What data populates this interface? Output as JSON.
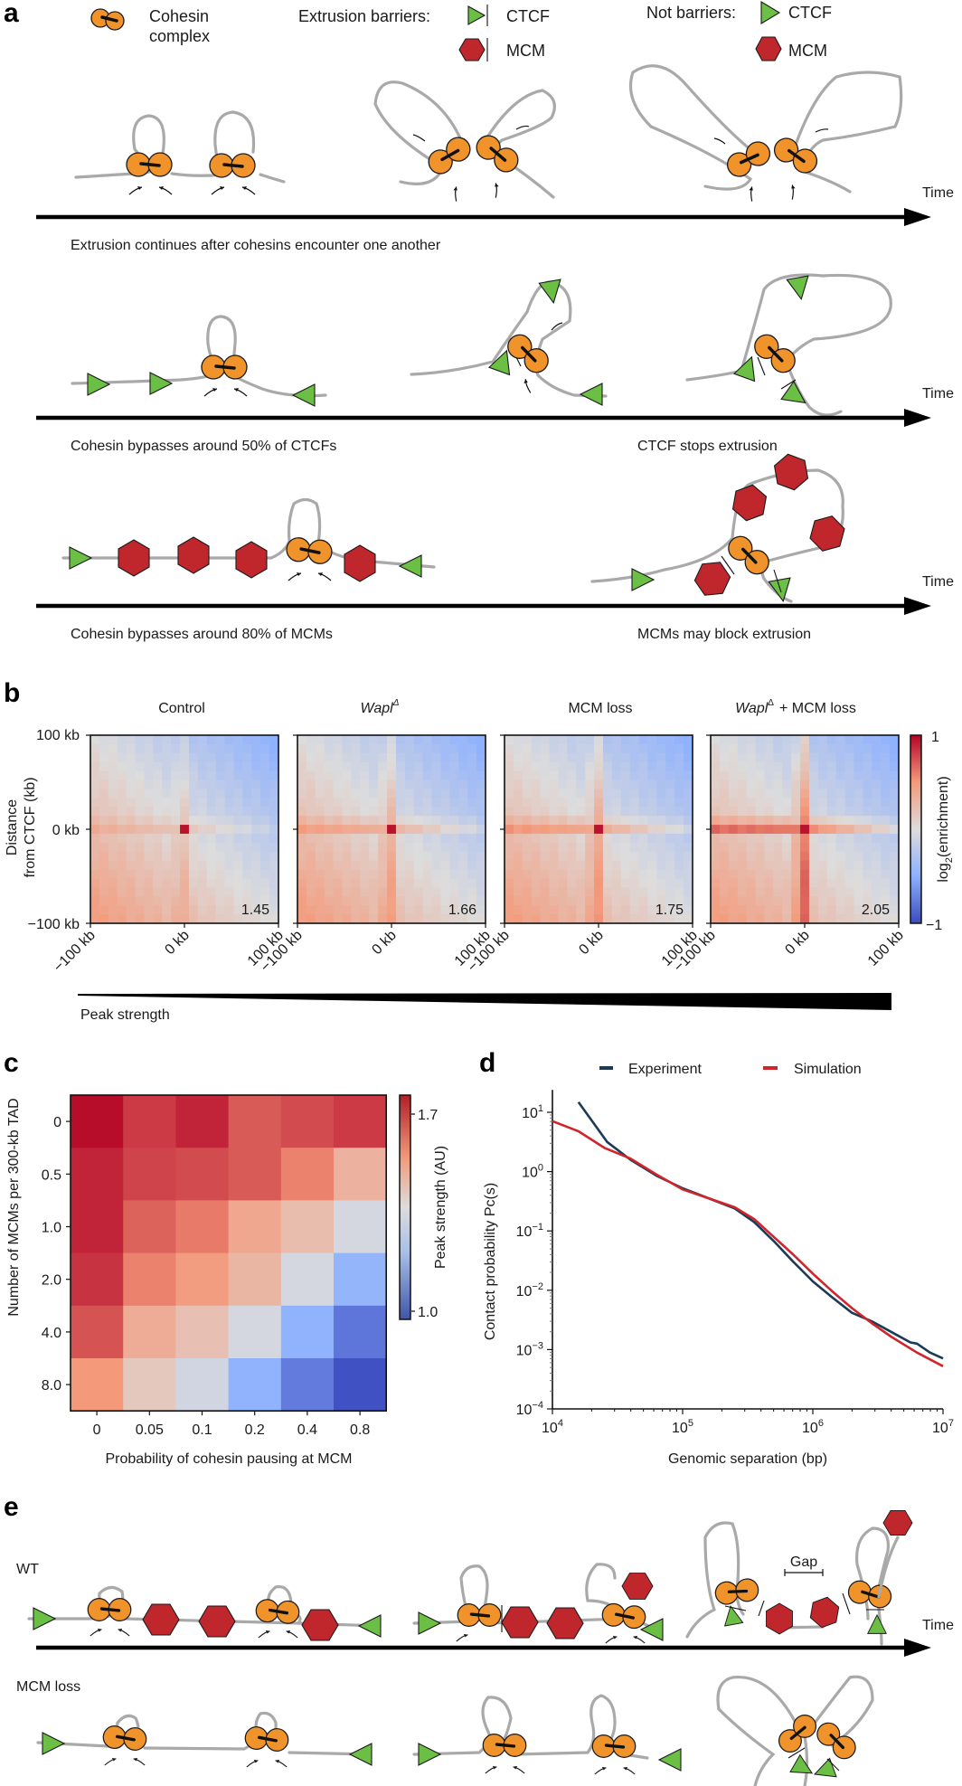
{
  "panels": {
    "a": {
      "letter": "a",
      "legend": {
        "cohesin_label_1": "Cohesin",
        "cohesin_label_2": "complex",
        "barriers_title": "Extrusion barriers:",
        "not_barriers_title": "Not barriers:",
        "ctcf": "CTCF",
        "mcm": "MCM"
      },
      "time_label": "Time",
      "rows": [
        {
          "caption_left": "Extrusion continues after cohesins encounter one another",
          "caption_right": ""
        },
        {
          "caption_left": "Cohesin bypasses around 50% of CTCFs",
          "caption_right": "CTCF stops extrusion"
        },
        {
          "caption_left": "Cohesin bypasses around 80% of MCMs",
          "caption_right": "MCMs may block extrusion"
        }
      ]
    },
    "b": {
      "letter": "b",
      "titles": [
        "Control",
        "Wapl",
        "MCM loss",
        "Wapl"
      ],
      "title_suffix_plus": "+ MCM loss",
      "delta": "Δ",
      "peak_values": [
        "1.45",
        "1.66",
        "1.75",
        "2.05"
      ],
      "y_ticks": [
        "100 kb",
        "0 kb",
        "−100 kb"
      ],
      "x_ticks": [
        "−100 kb",
        "0 kb",
        "100 kb"
      ],
      "y_label_1": "Distance",
      "y_label_2": "from CTCF (kb)",
      "colorbar": {
        "label_main": "log",
        "label_sub": "2",
        "label_rest": "(enrichment)",
        "max": "1",
        "min": "−1"
      },
      "peak_strength_label": "Peak strength"
    },
    "c": {
      "letter": "c"
    },
    "d": {
      "letter": "d"
    },
    "e": {
      "letter": "e",
      "row_labels": [
        "WT",
        "MCM loss"
      ],
      "gap_label": "Gap",
      "time_label": "Time"
    }
  },
  "colors": {
    "cohesin": "#f0932a",
    "ctcf": "#6cbf45",
    "mcm": "#c0272d",
    "dna": "#a9a9a9",
    "experiment": "#1b3a57",
    "simulation": "#d0252b"
  },
  "chart_data": [
    {
      "id": "panel-b",
      "type": "heatmap",
      "title": "Aggregate peak analysis around CTCF",
      "subplots": [
        "Control",
        "WaplΔ",
        "MCM loss",
        "WaplΔ + MCM loss"
      ],
      "peak_strength": [
        1.45,
        1.66,
        1.75,
        2.05
      ],
      "xlabel": "",
      "ylabel": "Distance from CTCF (kb)",
      "x_ticks": [
        "−100 kb",
        "0 kb",
        "100 kb"
      ],
      "y_ticks": [
        "100 kb",
        "0 kb",
        "−100 kb"
      ],
      "colorbar": {
        "label": "log2(enrichment)",
        "range": [
          -1,
          1
        ]
      }
    },
    {
      "id": "panel-c",
      "type": "heatmap",
      "xlabel": "Probability of cohesin pausing at MCM",
      "ylabel": "Number of MCMs per 300-kb TAD",
      "x_categories": [
        "0",
        "0.05",
        "0.1",
        "0.2",
        "0.4",
        "0.8"
      ],
      "y_categories": [
        "0",
        "0.5",
        "1.0",
        "2.0",
        "4.0",
        "8.0"
      ],
      "values": [
        [
          1.72,
          1.66,
          1.69,
          1.62,
          1.64,
          1.66
        ],
        [
          1.69,
          1.65,
          1.64,
          1.62,
          1.57,
          1.47
        ],
        [
          1.69,
          1.61,
          1.58,
          1.5,
          1.44,
          1.33
        ],
        [
          1.67,
          1.57,
          1.53,
          1.46,
          1.33,
          1.18
        ],
        [
          1.63,
          1.49,
          1.43,
          1.33,
          1.17,
          1.05
        ],
        [
          1.54,
          1.41,
          1.32,
          1.17,
          1.06,
          0.98
        ]
      ],
      "colorbar": {
        "label": "Peak strength (AU)",
        "ticks": [
          "1.7",
          "1.0"
        ],
        "range": [
          0.97,
          1.73
        ]
      }
    },
    {
      "id": "panel-d",
      "type": "line",
      "xlabel": "Genomic separation (bp)",
      "ylabel": "Contact probability Pc(s)",
      "x_scale": "log",
      "y_scale": "log",
      "xlim": [
        10000,
        10000000
      ],
      "ylim": [
        0.0001,
        20
      ],
      "x_ticks": [
        "10^4",
        "10^5",
        "10^6",
        "10^7"
      ],
      "y_ticks": [
        "10^1",
        "10^0",
        "10^-1",
        "10^-2",
        "10^-3",
        "10^-4"
      ],
      "legend": [
        "Experiment",
        "Simulation"
      ],
      "legend_position": "top",
      "series": [
        {
          "name": "Experiment",
          "color": "#1b3a57",
          "log10_x": [
            4.2,
            4.42,
            4.6,
            4.8,
            5.0,
            5.2,
            5.4,
            5.55,
            5.7,
            5.85,
            6.0,
            6.15,
            6.3,
            6.45,
            6.6,
            6.75,
            6.8,
            6.9,
            7.0
          ],
          "log10_y": [
            1.17,
            0.5,
            0.2,
            -0.07,
            -0.28,
            -0.45,
            -0.62,
            -0.85,
            -1.17,
            -1.52,
            -1.85,
            -2.12,
            -2.38,
            -2.52,
            -2.7,
            -2.88,
            -2.9,
            -3.05,
            -3.15
          ]
        },
        {
          "name": "Simulation",
          "color": "#d0252b",
          "log10_x": [
            4.0,
            4.2,
            4.4,
            4.6,
            4.8,
            5.0,
            5.2,
            5.4,
            5.55,
            5.7,
            5.85,
            6.0,
            6.15,
            6.3,
            6.45,
            6.6,
            6.8,
            7.0
          ],
          "log10_y": [
            0.85,
            0.68,
            0.4,
            0.22,
            -0.05,
            -0.3,
            -0.45,
            -0.6,
            -0.8,
            -1.1,
            -1.4,
            -1.72,
            -2.02,
            -2.3,
            -2.55,
            -2.78,
            -3.05,
            -3.28
          ]
        }
      ]
    }
  ]
}
